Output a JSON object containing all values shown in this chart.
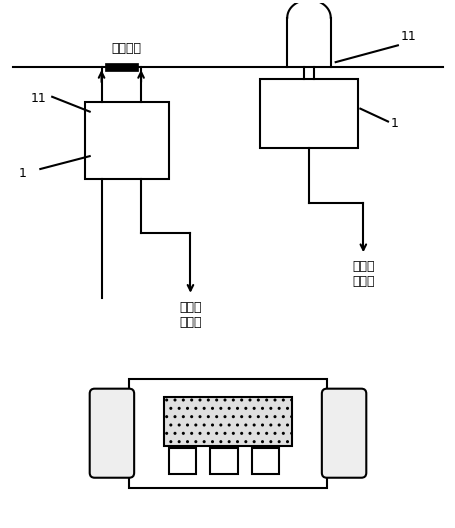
{
  "bg_color": "#ffffff",
  "line_color": "#000000",
  "line_width": 1.5,
  "font_size": 9,
  "figsize": [
    4.56,
    5.28
  ],
  "dpi": 100,
  "label_dianjie": "电缆接头",
  "label_11_left": "11",
  "label_11_right": "11",
  "label_1_left": "1",
  "label_1_right": "1",
  "label_voltage": "电压无\n线传输",
  "label_current": "电流无\n线传输"
}
